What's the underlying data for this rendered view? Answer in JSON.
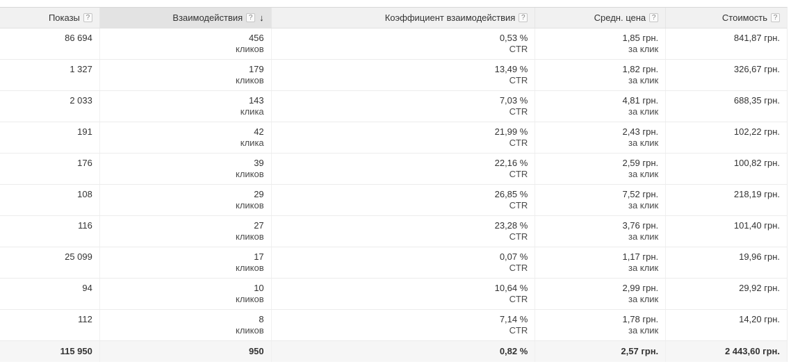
{
  "colors": {
    "header_bg": "#f1f1f1",
    "sorted_header_bg": "#e3e3e3",
    "total_row_bg": "#f6f6f6",
    "row_border": "#ececec",
    "text_primary": "#333333"
  },
  "header": {
    "help_icon": "?",
    "sort_desc_icon": "↓",
    "columns": [
      {
        "label": "Показы"
      },
      {
        "label": "Взаимодействия"
      },
      {
        "label": "Коэффициент взаимодействия"
      },
      {
        "label": "Средн. цена"
      },
      {
        "label": "Стоимость"
      }
    ]
  },
  "rows": [
    {
      "impressions": "86 694",
      "interactions": "456",
      "interactions_unit": "кликов",
      "rate": "0,53 %",
      "rate_unit": "CTR",
      "avg_cost": "1,85 грн.",
      "avg_cost_unit": "за клик",
      "cost": "841,87 грн."
    },
    {
      "impressions": "1 327",
      "interactions": "179",
      "interactions_unit": "кликов",
      "rate": "13,49 %",
      "rate_unit": "CTR",
      "avg_cost": "1,82 грн.",
      "avg_cost_unit": "за клик",
      "cost": "326,67 грн."
    },
    {
      "impressions": "2 033",
      "interactions": "143",
      "interactions_unit": "клика",
      "rate": "7,03 %",
      "rate_unit": "CTR",
      "avg_cost": "4,81 грн.",
      "avg_cost_unit": "за клик",
      "cost": "688,35 грн."
    },
    {
      "impressions": "191",
      "interactions": "42",
      "interactions_unit": "клика",
      "rate": "21,99 %",
      "rate_unit": "CTR",
      "avg_cost": "2,43 грн.",
      "avg_cost_unit": "за клик",
      "cost": "102,22 грн."
    },
    {
      "impressions": "176",
      "interactions": "39",
      "interactions_unit": "кликов",
      "rate": "22,16 %",
      "rate_unit": "CTR",
      "avg_cost": "2,59 грн.",
      "avg_cost_unit": "за клик",
      "cost": "100,82 грн."
    },
    {
      "impressions": "108",
      "interactions": "29",
      "interactions_unit": "кликов",
      "rate": "26,85 %",
      "rate_unit": "CTR",
      "avg_cost": "7,52 грн.",
      "avg_cost_unit": "за клик",
      "cost": "218,19 грн."
    },
    {
      "impressions": "116",
      "interactions": "27",
      "interactions_unit": "кликов",
      "rate": "23,28 %",
      "rate_unit": "CTR",
      "avg_cost": "3,76 грн.",
      "avg_cost_unit": "за клик",
      "cost": "101,40 грн."
    },
    {
      "impressions": "25 099",
      "interactions": "17",
      "interactions_unit": "кликов",
      "rate": "0,07 %",
      "rate_unit": "CTR",
      "avg_cost": "1,17 грн.",
      "avg_cost_unit": "за клик",
      "cost": "19,96 грн."
    },
    {
      "impressions": "94",
      "interactions": "10",
      "interactions_unit": "кликов",
      "rate": "10,64 %",
      "rate_unit": "CTR",
      "avg_cost": "2,99 грн.",
      "avg_cost_unit": "за клик",
      "cost": "29,92 грн."
    },
    {
      "impressions": "112",
      "interactions": "8",
      "interactions_unit": "кликов",
      "rate": "7,14 %",
      "rate_unit": "CTR",
      "avg_cost": "1,78 грн.",
      "avg_cost_unit": "за клик",
      "cost": "14,20 грн."
    }
  ],
  "total": {
    "impressions": "115 950",
    "interactions": "950",
    "rate": "0,82 %",
    "avg_cost": "2,57 грн.",
    "cost": "2 443,60 грн."
  }
}
